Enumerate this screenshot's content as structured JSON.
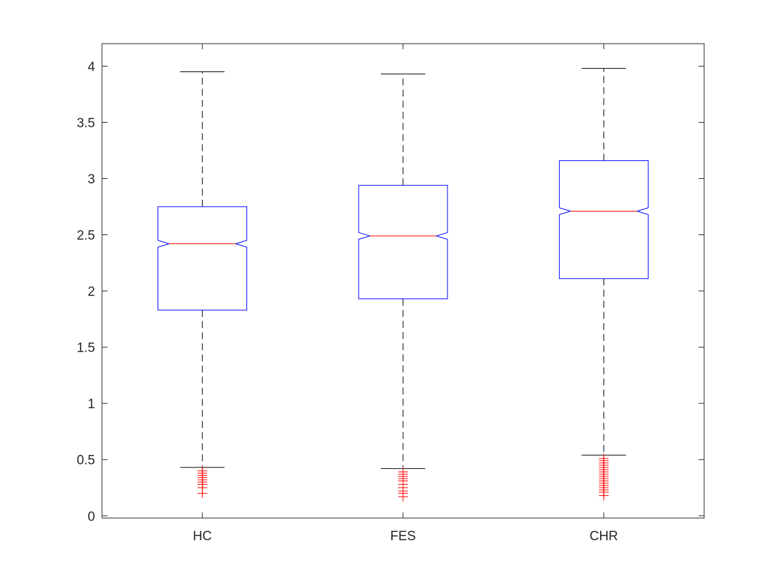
{
  "chart_data": {
    "type": "box",
    "title": "",
    "xlabel": "",
    "ylabel": "",
    "ylim": [
      -0.02,
      4.2
    ],
    "yticks": [
      0,
      0.5,
      1,
      1.5,
      2,
      2.5,
      3,
      3.5,
      4
    ],
    "ytick_labels": [
      "0",
      "0.5",
      "1",
      "1.5",
      "2",
      "2.5",
      "3",
      "3.5",
      "4"
    ],
    "notched": true,
    "grid": false,
    "legend": "none",
    "colors": {
      "box": "#0000ff",
      "median": "#ff0000",
      "whisker": "#000000",
      "outlier": "#ff0000",
      "axis": "#262626"
    },
    "categories": [
      "HC",
      "FES",
      "CHR"
    ],
    "boxes": [
      {
        "label": "HC",
        "whisker_low": 0.43,
        "q1": 1.83,
        "median": 2.42,
        "q3": 2.75,
        "whisker_high": 3.95,
        "notch_low": 2.39,
        "notch_high": 2.45,
        "outliers": [
          0.4,
          0.38,
          0.36,
          0.34,
          0.32,
          0.3,
          0.28,
          0.25,
          0.2
        ]
      },
      {
        "label": "FES",
        "whisker_low": 0.42,
        "q1": 1.93,
        "median": 2.49,
        "q3": 2.94,
        "whisker_high": 3.93,
        "notch_low": 2.46,
        "notch_high": 2.52,
        "outliers": [
          0.39,
          0.37,
          0.35,
          0.33,
          0.31,
          0.28,
          0.25,
          0.22,
          0.2,
          0.17
        ]
      },
      {
        "label": "CHR",
        "whisker_low": 0.54,
        "q1": 2.11,
        "median": 2.71,
        "q3": 3.16,
        "whisker_high": 3.98,
        "notch_low": 2.68,
        "notch_high": 2.74,
        "outliers": [
          0.51,
          0.49,
          0.47,
          0.45,
          0.43,
          0.41,
          0.39,
          0.37,
          0.35,
          0.33,
          0.31,
          0.29,
          0.27,
          0.25,
          0.23,
          0.21,
          0.18
        ]
      }
    ]
  }
}
